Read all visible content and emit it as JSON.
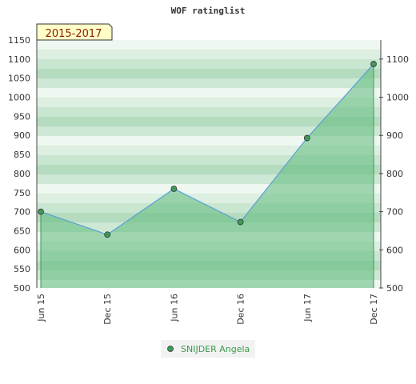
{
  "chart_data": {
    "type": "area",
    "title": "WOF ratinglist",
    "badge": "2015-2017",
    "x": [
      "Jun 15",
      "Dec 15",
      "Jun 16",
      "Dec 16",
      "Jun 17",
      "Dec 17"
    ],
    "series": [
      {
        "name": "SNIJDER Angela",
        "values": [
          700,
          640,
          760,
          673,
          893,
          1087
        ]
      }
    ],
    "ylim": [
      500,
      1150
    ],
    "left_ticks": [
      500,
      550,
      600,
      650,
      700,
      750,
      800,
      850,
      900,
      950,
      1000,
      1050,
      1100,
      1150
    ],
    "right_ticks": [
      500,
      600,
      700,
      800,
      900,
      1000,
      1100
    ],
    "grid": true,
    "legend_position": "bottom"
  },
  "colors": {
    "line": "#5a9fd6",
    "area": "#5fb97c",
    "marker": "#3f9a5a",
    "stripe_light": "#eef7f0",
    "stripe_dark": "#b5dcbf",
    "badge_bg": "#ffffc8",
    "badge_text": "#8b1a00",
    "legend_text": "#3a9a4a"
  }
}
